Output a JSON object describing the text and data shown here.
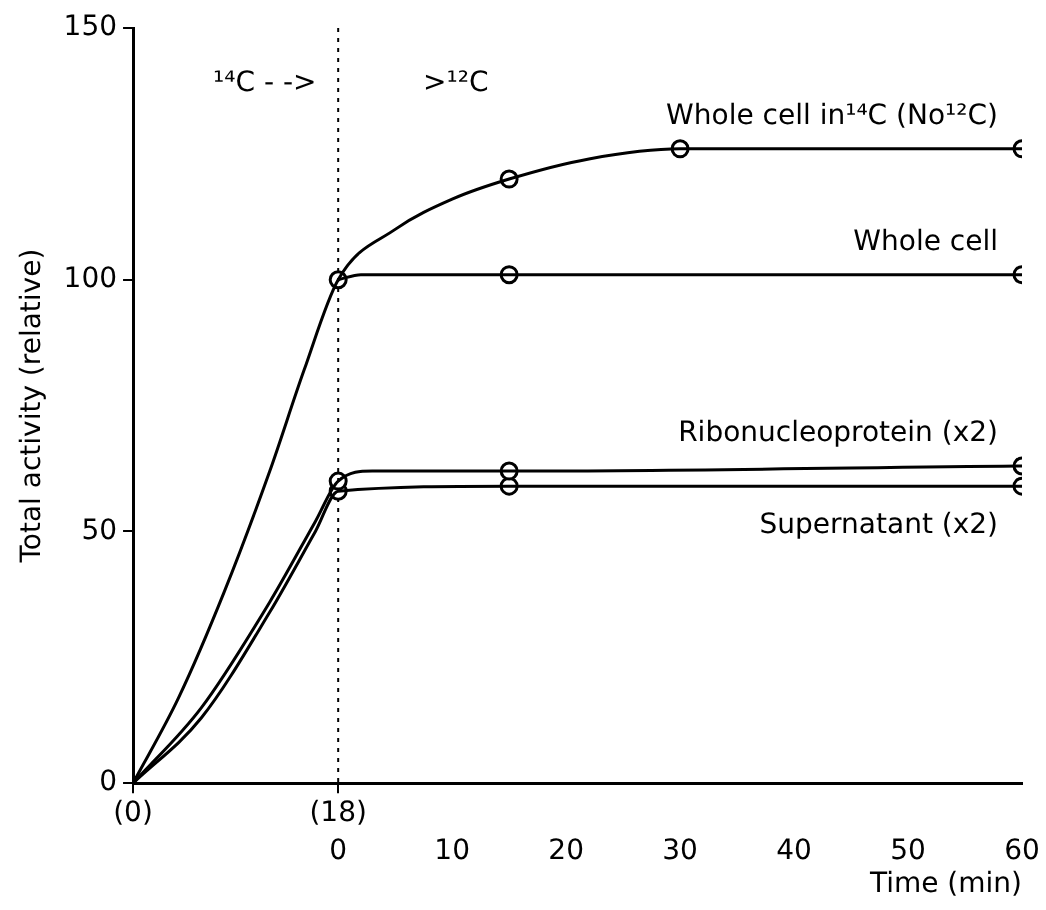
{
  "chart_data": {
    "type": "line",
    "xlabel": "Time (min)",
    "ylabel": "Total activity (relative)",
    "xlim": [
      -18,
      60
    ],
    "ylim": [
      0,
      150
    ],
    "xticks": [
      0,
      10,
      20,
      30,
      40,
      50,
      60
    ],
    "x2lim": [
      0,
      78
    ],
    "x2ticks": [
      {
        "value": 0,
        "label": "(0)"
      },
      {
        "value": 18,
        "label": "(18)"
      }
    ],
    "yticks": [
      0,
      50,
      100,
      150
    ],
    "grid": false,
    "legend": false,
    "ref_lines": [
      {
        "axis": "x",
        "value": 0,
        "line_style": "dotted"
      }
    ],
    "annotations": [
      "¹⁴C - ->",
      ">¹²C"
    ],
    "series": [
      {
        "type": "line",
        "color": "#000000",
        "marker": "none",
        "x": [
          -18,
          -14,
          -10,
          -6,
          -3,
          0,
          5,
          10,
          15,
          22,
          30,
          45,
          60
        ],
        "values": [
          0,
          17,
          38,
          62,
          82,
          100,
          110,
          116,
          120,
          124,
          126,
          126,
          126
        ]
      },
      {
        "type": "scatter",
        "name": "Whole cell in¹⁴C (No¹²C)",
        "color": "#000000",
        "marker": "circle",
        "x": [
          15,
          30,
          60
        ],
        "values": [
          120,
          126,
          126
        ]
      },
      {
        "type": "line",
        "color": "#000000",
        "marker": "none",
        "x": [
          0,
          2,
          15,
          60
        ],
        "values": [
          100,
          101,
          101,
          101
        ]
      },
      {
        "type": "scatter",
        "name": "Whole cell",
        "color": "#000000",
        "marker": "circle",
        "x": [
          0,
          15,
          60
        ],
        "values": [
          100,
          101,
          101
        ]
      },
      {
        "type": "line",
        "color": "#000000",
        "marker": "none",
        "x": [
          -18,
          -12,
          -6,
          -2,
          0,
          3,
          15,
          60
        ],
        "values": [
          0,
          15,
          36,
          52,
          60,
          62,
          62,
          63
        ]
      },
      {
        "type": "scatter",
        "name": "Ribonucleoprotein (x2)",
        "color": "#000000",
        "marker": "circle",
        "x": [
          0,
          15,
          60
        ],
        "values": [
          60,
          62,
          63
        ]
      },
      {
        "type": "line",
        "color": "#000000",
        "marker": "none",
        "x": [
          -18,
          -12,
          -6,
          -2,
          0,
          15,
          60
        ],
        "values": [
          0,
          13,
          34,
          50,
          58,
          59,
          59
        ]
      },
      {
        "type": "scatter",
        "name": "Supernatant (x2)",
        "color": "#000000",
        "marker": "circle",
        "x": [
          0,
          15,
          60
        ],
        "values": [
          58,
          59,
          59
        ]
      }
    ]
  }
}
